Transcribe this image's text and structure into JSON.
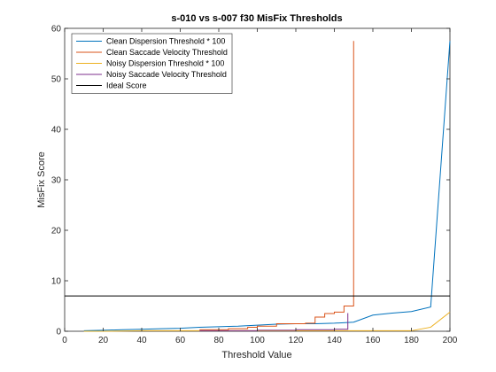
{
  "chart_data": {
    "type": "line",
    "title": "s-010 vs s-007 f30 MisFix Thresholds",
    "xlabel": "Threshold Value",
    "ylabel": "MisFix Score",
    "xlim": [
      0,
      200
    ],
    "ylim": [
      0,
      60
    ],
    "xticks": [
      "0",
      "20",
      "40",
      "60",
      "80",
      "100",
      "120",
      "140",
      "160",
      "180",
      "200"
    ],
    "yticks": [
      "0",
      "10",
      "20",
      "30",
      "40",
      "50",
      "60"
    ],
    "grid": false,
    "legend_position": "top-left",
    "series": [
      {
        "name": "Clean Dispersion Threshold * 100",
        "color": "#0072BD",
        "step": false,
        "x": [
          10,
          20,
          30,
          40,
          50,
          60,
          70,
          80,
          90,
          100,
          110,
          120,
          130,
          140,
          150,
          160,
          170,
          180,
          190,
          200
        ],
        "y": [
          0.1,
          0.2,
          0.3,
          0.4,
          0.5,
          0.6,
          0.8,
          0.9,
          1.0,
          1.2,
          1.4,
          1.5,
          1.5,
          1.6,
          1.8,
          3.2,
          3.6,
          3.9,
          4.8,
          57.5
        ]
      },
      {
        "name": "Clean Saccade Velocity Threshold",
        "color": "#D95319",
        "step": true,
        "x": [
          70,
          85,
          95,
          100,
          110,
          125,
          130,
          135,
          140,
          145,
          150,
          150
        ],
        "y": [
          0.3,
          0.5,
          0.8,
          1.0,
          1.5,
          1.6,
          2.8,
          3.5,
          3.8,
          5.0,
          5.0,
          57.5
        ]
      },
      {
        "name": "Noisy Dispersion Threshold * 100",
        "color": "#EDB120",
        "step": false,
        "x": [
          10,
          20,
          40,
          60,
          80,
          100,
          120,
          140,
          160,
          180,
          190,
          200
        ],
        "y": [
          0,
          0,
          0.1,
          0.1,
          0.1,
          0.1,
          0.1,
          0.1,
          0.1,
          0.1,
          0.8,
          3.8
        ]
      },
      {
        "name": "Noisy Saccade Velocity Threshold",
        "color": "#7E2F8E",
        "step": true,
        "x": [
          70,
          100,
          120,
          140,
          147,
          147
        ],
        "y": [
          0.1,
          0.2,
          0.3,
          0.4,
          0.5,
          3.6
        ]
      },
      {
        "name": "Ideal Score",
        "color": "#000000",
        "step": false,
        "x": [
          0,
          200
        ],
        "y": [
          7,
          7
        ]
      }
    ]
  }
}
